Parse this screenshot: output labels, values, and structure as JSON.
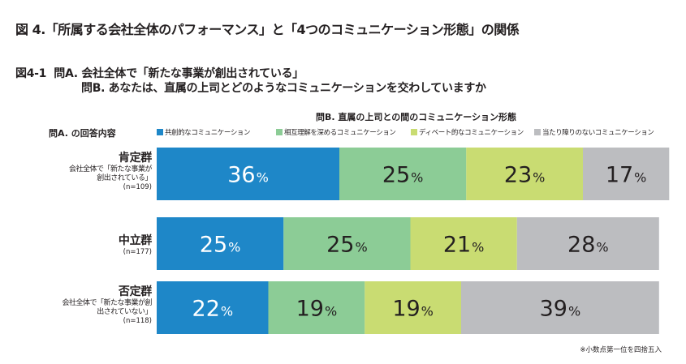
{
  "header": {
    "figure_title": "図 4.「所属する会社全体のパフォーマンス」と「4つのコミュニケーション形態」の関係",
    "figure_sub_id": "図4-1",
    "question_a": "問A. 会社全体で「新たな事業が創出されている」",
    "question_b": "問B. あなたは、直属の上司とどのようなコミュニケーションを交わしていますか"
  },
  "column_header": "問B. 直属の上司との間のコミュニケーション形態",
  "row_header": "問A. の回答内容",
  "footnote": "※小数点第一位を四捨五入",
  "colors": {
    "empathy": "#1e87c8",
    "mutual": "#8ccc96",
    "debate": "#c9dc72",
    "neutral": "#bcbdc0"
  },
  "chart_data": {
    "type": "bar",
    "orientation": "horizontal",
    "stacked": true,
    "normalized": true,
    "unit": "%",
    "xlim": [
      0,
      100
    ],
    "title": "問B. 直属の上司との間のコミュニケーション形態",
    "ylabel": "問A. の回答内容",
    "legend_position": "top",
    "categories": [
      "肯定群",
      "中立群",
      "否定群"
    ],
    "category_details": [
      {
        "name": "肯定群",
        "desc": [
          "会社全体で「新たな事業が",
          "創出されている」"
        ],
        "n": "(n=109)"
      },
      {
        "name": "中立群",
        "desc": [],
        "n": "(n=177)"
      },
      {
        "name": "否定群",
        "desc": [
          "会社全体で「新たな事業が創",
          "出されていない」"
        ],
        "n": "(n=118)"
      }
    ],
    "series": [
      {
        "name": "共創的なコミュニケーション",
        "color_key": "empathy",
        "values": [
          36,
          25,
          22
        ]
      },
      {
        "name": "相互理解を深めるコミュニケーション",
        "color_key": "mutual",
        "values": [
          25,
          25,
          19
        ]
      },
      {
        "name": "ディベート的なコミュニケーション",
        "color_key": "debate",
        "values": [
          23,
          21,
          19
        ]
      },
      {
        "name": "当たり障りのないコミュニケーション",
        "color_key": "neutral",
        "values": [
          17,
          28,
          39
        ]
      }
    ]
  }
}
